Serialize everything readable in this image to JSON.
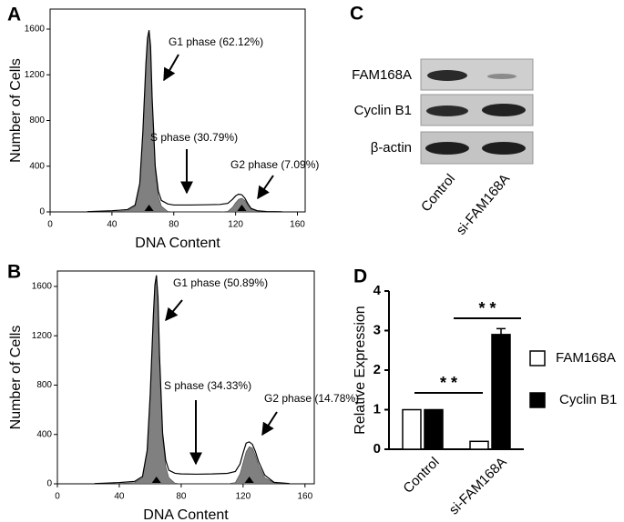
{
  "chart_data": [
    {
      "panel": "A",
      "type": "area",
      "xlabel": "DNA Content",
      "ylabel": "Number of Cells",
      "x": [
        24,
        30,
        40,
        50,
        55,
        58,
        60,
        62,
        63,
        64,
        65,
        66,
        68,
        70,
        72,
        76,
        80,
        90,
        100,
        110,
        115,
        118,
        120,
        122,
        124,
        126,
        128,
        130,
        134,
        140,
        150
      ],
      "series": [
        {
          "color": "#808080",
          "filled": true,
          "values": [
            0,
            0,
            2,
            10,
            50,
            240,
            690,
            1290,
            1510,
            1580,
            1440,
            980,
            370,
            140,
            50,
            5,
            0,
            0,
            0,
            0,
            5,
            40,
            80,
            110,
            120,
            100,
            60,
            25,
            8,
            2,
            0
          ]
        },
        {
          "color": "#000000",
          "filled": false,
          "values": [
            2,
            5,
            10,
            20,
            60,
            250,
            700,
            1300,
            1520,
            1590,
            1450,
            1000,
            400,
            180,
            100,
            70,
            60,
            60,
            62,
            65,
            75,
            110,
            140,
            155,
            150,
            120,
            70,
            30,
            10,
            3,
            1
          ]
        }
      ],
      "xlim": [
        0,
        165
      ],
      "ylim": [
        0,
        1775
      ],
      "xticks": [
        0,
        40,
        80,
        120,
        160
      ],
      "yticks": [
        0,
        400,
        800,
        1200,
        1600
      ],
      "markers": [
        64,
        124
      ],
      "annotations": [
        "G1 phase (62.12%)",
        "S phase (30.79%)",
        "G2 phase (7.09%)"
      ]
    },
    {
      "panel": "B",
      "type": "area",
      "xlabel": "DNA Content",
      "ylabel": "Number of Cells",
      "x": [
        24,
        30,
        40,
        50,
        55,
        58,
        60,
        62,
        63,
        64,
        65,
        66,
        68,
        70,
        72,
        76,
        80,
        90,
        100,
        110,
        115,
        118,
        120,
        122,
        124,
        126,
        128,
        130,
        134,
        140,
        150
      ],
      "series": [
        {
          "color": "#808080",
          "filled": true,
          "values": [
            0,
            0,
            2,
            10,
            50,
            260,
            720,
            1350,
            1600,
            1680,
            1500,
            1020,
            380,
            140,
            50,
            5,
            0,
            0,
            0,
            0,
            10,
            80,
            170,
            260,
            300,
            290,
            230,
            150,
            50,
            8,
            0
          ]
        },
        {
          "color": "#000000",
          "filled": false,
          "values": [
            2,
            5,
            10,
            20,
            60,
            270,
            730,
            1360,
            1610,
            1690,
            1510,
            1040,
            410,
            190,
            110,
            85,
            80,
            78,
            80,
            85,
            100,
            160,
            250,
            330,
            340,
            320,
            260,
            180,
            70,
            12,
            2
          ]
        }
      ],
      "xlim": [
        0,
        166
      ],
      "ylim": [
        0,
        1725
      ],
      "xticks": [
        0,
        40,
        80,
        120,
        160
      ],
      "yticks": [
        0,
        400,
        800,
        1200,
        1600
      ],
      "markers": [
        64,
        124
      ],
      "annotations": [
        "G1 phase (50.89%)",
        "S phase (34.33%)",
        "G2 phase (14.78%)"
      ]
    },
    {
      "panel": "D",
      "type": "bar",
      "ylabel": "Relative Expression",
      "categories": [
        "Control",
        "si-FAM168A"
      ],
      "series": [
        {
          "name": "FAM168A",
          "color": "#ffffff",
          "values": [
            1,
            0.2
          ],
          "errors": [
            null,
            null
          ]
        },
        {
          "name": "Cyclin B1",
          "color": "#000000",
          "values": [
            1,
            2.9
          ],
          "errors": [
            null,
            0.15
          ]
        }
      ],
      "ylim": [
        0,
        4
      ],
      "yticks": [
        0,
        1,
        2,
        3,
        4
      ],
      "annotations": [
        "* *",
        "* *"
      ]
    }
  ],
  "blot": {
    "panel": "C",
    "rows": [
      "FAM168A",
      "Cyclin B1",
      "β-actin"
    ],
    "columns": [
      "Control",
      "si-FAM168A"
    ]
  }
}
